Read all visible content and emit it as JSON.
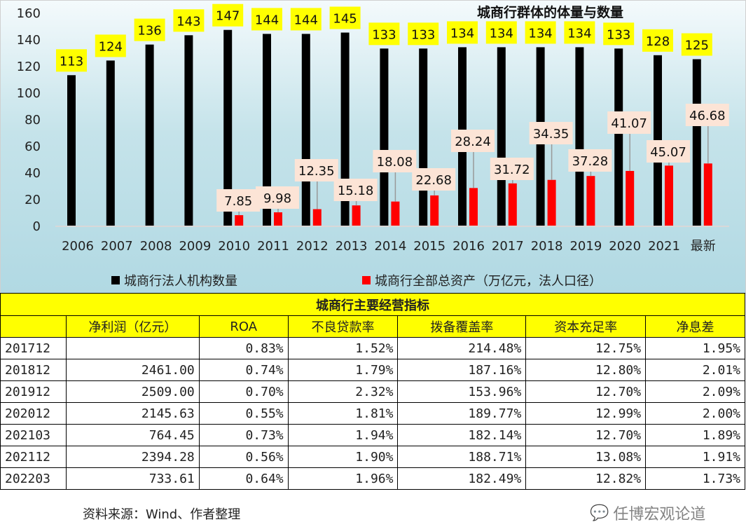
{
  "chart_data": {
    "type": "bar",
    "title": "城商行群体的体量与数量",
    "categories": [
      "2006",
      "2007",
      "2008",
      "2009",
      "2010",
      "2011",
      "2012",
      "2013",
      "2014",
      "2015",
      "2016",
      "2017",
      "2018",
      "2019",
      "2020",
      "2021",
      "最新"
    ],
    "ylim": [
      0,
      160
    ],
    "yticks": [
      "0",
      "20",
      "40",
      "60",
      "80",
      "100",
      "120",
      "140",
      "160"
    ],
    "legend_position": "bottom",
    "series": [
      {
        "name": "城商行法人机构数量",
        "color": "#000000",
        "label_bg": "#ffff00",
        "values": [
          113,
          124,
          136,
          143,
          147,
          144,
          144,
          145,
          133,
          133,
          134,
          134,
          134,
          134,
          133,
          128,
          125
        ]
      },
      {
        "name": "城商行全部总资产（万亿元，法人口径）",
        "color": "#ff0000",
        "label_bg": "#fce4d6",
        "values": [
          null,
          null,
          null,
          null,
          7.85,
          9.98,
          12.35,
          15.18,
          18.08,
          22.68,
          28.24,
          31.72,
          34.35,
          37.28,
          41.07,
          45.07,
          46.68
        ]
      }
    ]
  },
  "table": {
    "title": "城商行主要经营指标",
    "headers": [
      "",
      "净利润（亿元）",
      "ROA",
      "不良贷款率",
      "拨备覆盖率",
      "资本充足率",
      "净息差"
    ],
    "rows": [
      [
        "201712",
        "",
        "0.83%",
        "1.52%",
        "214.48%",
        "12.75%",
        "1.95%"
      ],
      [
        "201812",
        "2461.00",
        "0.74%",
        "1.79%",
        "187.16%",
        "12.80%",
        "2.01%"
      ],
      [
        "201912",
        "2509.00",
        "0.70%",
        "2.32%",
        "153.96%",
        "12.70%",
        "2.09%"
      ],
      [
        "202012",
        "2145.63",
        "0.55%",
        "1.81%",
        "189.77%",
        "12.99%",
        "2.00%"
      ],
      [
        "202103",
        "764.45",
        "0.73%",
        "1.94%",
        "182.14%",
        "12.70%",
        "1.89%"
      ],
      [
        "202112",
        "2394.28",
        "0.56%",
        "1.90%",
        "188.71%",
        "13.08%",
        "1.91%"
      ],
      [
        "202203",
        "733.61",
        "0.64%",
        "1.96%",
        "182.49%",
        "12.82%",
        "1.73%"
      ]
    ]
  },
  "source": "资料来源：Wind、作者整理",
  "watermark": "任博宏观论道"
}
